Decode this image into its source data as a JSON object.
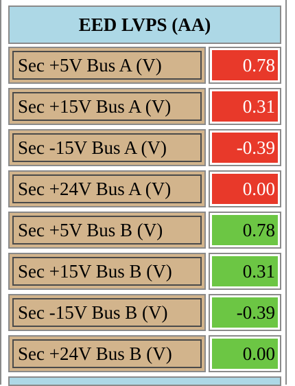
{
  "panel": {
    "title": "EED LVPS (AA)",
    "colors": {
      "header": "#add8e6",
      "label_bg": "#d2b48c",
      "alarm": "#e8392a",
      "ok": "#6cc644"
    },
    "rows": [
      {
        "label": "Sec +5V Bus A (V)",
        "value": "0.78",
        "status": "alarm"
      },
      {
        "label": "Sec +15V Bus A (V)",
        "value": "0.31",
        "status": "alarm"
      },
      {
        "label": "Sec -15V Bus A (V)",
        "value": "-0.39",
        "status": "alarm"
      },
      {
        "label": "Sec +24V Bus A (V)",
        "value": "0.00",
        "status": "alarm"
      },
      {
        "label": "Sec +5V Bus B (V)",
        "value": "0.78",
        "status": "ok"
      },
      {
        "label": "Sec +15V Bus B (V)",
        "value": "0.31",
        "status": "ok"
      },
      {
        "label": "Sec -15V Bus B (V)",
        "value": "-0.39",
        "status": "ok"
      },
      {
        "label": "Sec +24V Bus B (V)",
        "value": "0.00",
        "status": "ok"
      }
    ]
  }
}
